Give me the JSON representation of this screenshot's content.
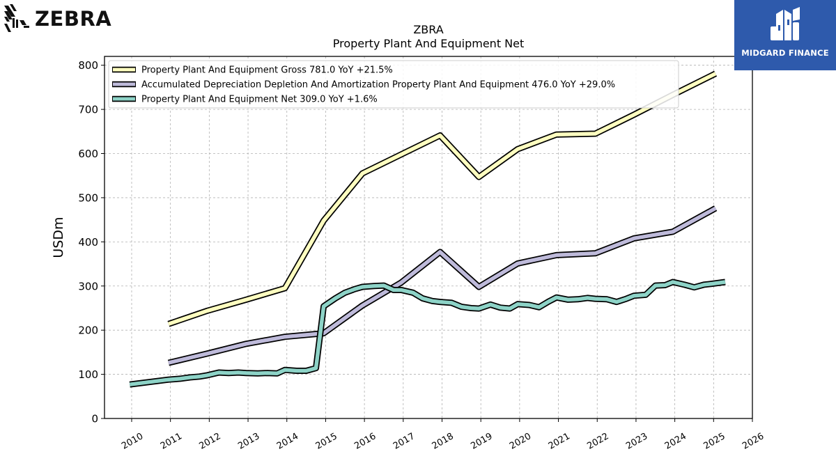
{
  "logos": {
    "company": "ZEBRA",
    "watermark": "MIDGARD FINANCE"
  },
  "colors": {
    "gross": "#ffffc0",
    "accumulated": "#bebada",
    "net": "#8dd3c7",
    "watermark_bg": "#2e5aac"
  },
  "chart_data": {
    "type": "line",
    "title": "ZBRA",
    "subtitle": "Property Plant And Equipment Net",
    "ylabel": "USDm",
    "xlabel": "",
    "ylim": [
      0,
      820
    ],
    "xlim": [
      2009.3,
      2026.0
    ],
    "yticks": [
      0,
      100,
      200,
      300,
      400,
      500,
      600,
      700,
      800
    ],
    "xticks": [
      "2010",
      "2011",
      "2012",
      "2013",
      "2014",
      "2015",
      "2016",
      "2017",
      "2018",
      "2019",
      "2020",
      "2021",
      "2022",
      "2023",
      "2024",
      "2025",
      "2026"
    ],
    "grid": true,
    "legend_position": "top-left",
    "series": [
      {
        "name": "Property Plant And Equipment Gross  781.0 YoY +21.5%",
        "color": "#ffffc0",
        "points": [
          [
            2010.95,
            214
          ],
          [
            2011.95,
            244
          ],
          [
            2012.95,
            269
          ],
          [
            2013.95,
            295
          ],
          [
            2014.95,
            448
          ],
          [
            2015.95,
            555
          ],
          [
            2017.95,
            641
          ],
          [
            2018.95,
            547
          ],
          [
            2019.95,
            610
          ],
          [
            2020.95,
            643
          ],
          [
            2021.95,
            645
          ],
          [
            2022.95,
            688
          ],
          [
            2023.95,
            733
          ],
          [
            2025.05,
            781
          ]
        ]
      },
      {
        "name": "Accumulated Depreciation Depletion And Amortization Property Plant And Equipment  476.0 YoY +29.0%",
        "color": "#bebada",
        "points": [
          [
            2010.95,
            126
          ],
          [
            2011.95,
            147
          ],
          [
            2012.95,
            169
          ],
          [
            2013.95,
            185
          ],
          [
            2014.95,
            193
          ],
          [
            2015.95,
            256
          ],
          [
            2016.95,
            308
          ],
          [
            2017.95,
            377
          ],
          [
            2018.95,
            298
          ],
          [
            2019.95,
            351
          ],
          [
            2020.95,
            370
          ],
          [
            2021.95,
            374
          ],
          [
            2022.95,
            408
          ],
          [
            2023.95,
            423
          ],
          [
            2025.05,
            476
          ]
        ]
      },
      {
        "name": "Property Plant And Equipment Net  309.0 YoY +1.6%",
        "color": "#8dd3c7",
        "points": [
          [
            2009.95,
            77
          ],
          [
            2010.95,
            88
          ],
          [
            2011.25,
            90
          ],
          [
            2011.5,
            93
          ],
          [
            2011.75,
            95
          ],
          [
            2011.95,
            98
          ],
          [
            2012.25,
            104
          ],
          [
            2012.5,
            103
          ],
          [
            2012.75,
            104
          ],
          [
            2012.95,
            103
          ],
          [
            2013.25,
            102
          ],
          [
            2013.5,
            103
          ],
          [
            2013.75,
            102
          ],
          [
            2013.95,
            110
          ],
          [
            2014.25,
            108
          ],
          [
            2014.5,
            108
          ],
          [
            2014.75,
            114
          ],
          [
            2014.95,
            254
          ],
          [
            2015.25,
            272
          ],
          [
            2015.5,
            285
          ],
          [
            2015.75,
            293
          ],
          [
            2015.95,
            298
          ],
          [
            2016.25,
            300
          ],
          [
            2016.5,
            301
          ],
          [
            2016.75,
            291
          ],
          [
            2016.95,
            291
          ],
          [
            2017.25,
            285
          ],
          [
            2017.5,
            272
          ],
          [
            2017.75,
            266
          ],
          [
            2017.95,
            264
          ],
          [
            2018.25,
            262
          ],
          [
            2018.5,
            253
          ],
          [
            2018.75,
            250
          ],
          [
            2018.95,
            249
          ],
          [
            2019.25,
            258
          ],
          [
            2019.5,
            251
          ],
          [
            2019.75,
            249
          ],
          [
            2019.95,
            259
          ],
          [
            2020.25,
            257
          ],
          [
            2020.5,
            252
          ],
          [
            2020.75,
            265
          ],
          [
            2020.95,
            274
          ],
          [
            2021.25,
            269
          ],
          [
            2021.5,
            270
          ],
          [
            2021.75,
            273
          ],
          [
            2021.95,
            271
          ],
          [
            2022.25,
            270
          ],
          [
            2022.5,
            264
          ],
          [
            2022.75,
            271
          ],
          [
            2022.95,
            278
          ],
          [
            2023.25,
            280
          ],
          [
            2023.5,
            301
          ],
          [
            2023.75,
            302
          ],
          [
            2023.95,
            309
          ],
          [
            2024.25,
            303
          ],
          [
            2024.5,
            297
          ],
          [
            2024.75,
            303
          ],
          [
            2024.95,
            305
          ],
          [
            2025.3,
            309
          ]
        ]
      }
    ]
  }
}
